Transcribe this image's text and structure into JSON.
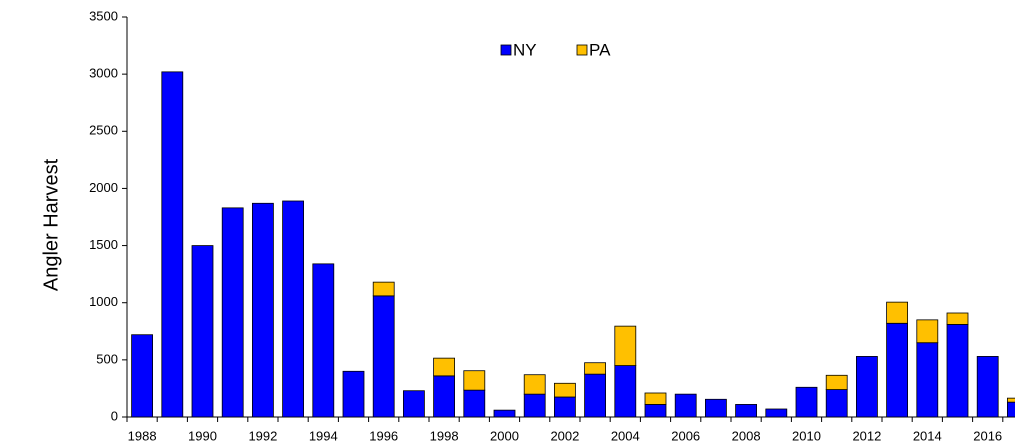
{
  "chart_data": {
    "type": "stacked_bar",
    "y_label": "Angler Harvest",
    "categories": [
      "1988",
      null,
      "1990",
      null,
      "1992",
      null,
      "1994",
      null,
      "1996",
      null,
      "1998",
      null,
      "2000",
      null,
      "2002",
      null,
      "2004",
      null,
      "2006",
      null,
      "2008",
      null,
      "2010",
      null,
      "2012",
      null,
      "2014",
      null,
      "2016",
      null
    ],
    "series": [
      {
        "name": "NY",
        "color": "#0000ff",
        "values": [
          720,
          3020,
          1500,
          1830,
          1870,
          1890,
          1340,
          400,
          1060,
          230,
          360,
          235,
          60,
          200,
          175,
          375,
          450,
          110,
          200,
          155,
          110,
          70,
          260,
          240,
          530,
          820,
          650,
          810,
          530,
          130
        ]
      },
      {
        "name": "PA",
        "color": "#ffc000",
        "values": [
          0,
          0,
          0,
          0,
          0,
          0,
          0,
          0,
          120,
          0,
          155,
          170,
          0,
          170,
          120,
          100,
          345,
          100,
          0,
          0,
          0,
          0,
          0,
          125,
          0,
          185,
          200,
          100,
          0,
          35
        ]
      }
    ],
    "ylim": [
      0,
      3500
    ],
    "yticks": [
      0,
      500,
      1000,
      1500,
      2000,
      2500,
      3000,
      3500
    ],
    "legend": "top"
  }
}
